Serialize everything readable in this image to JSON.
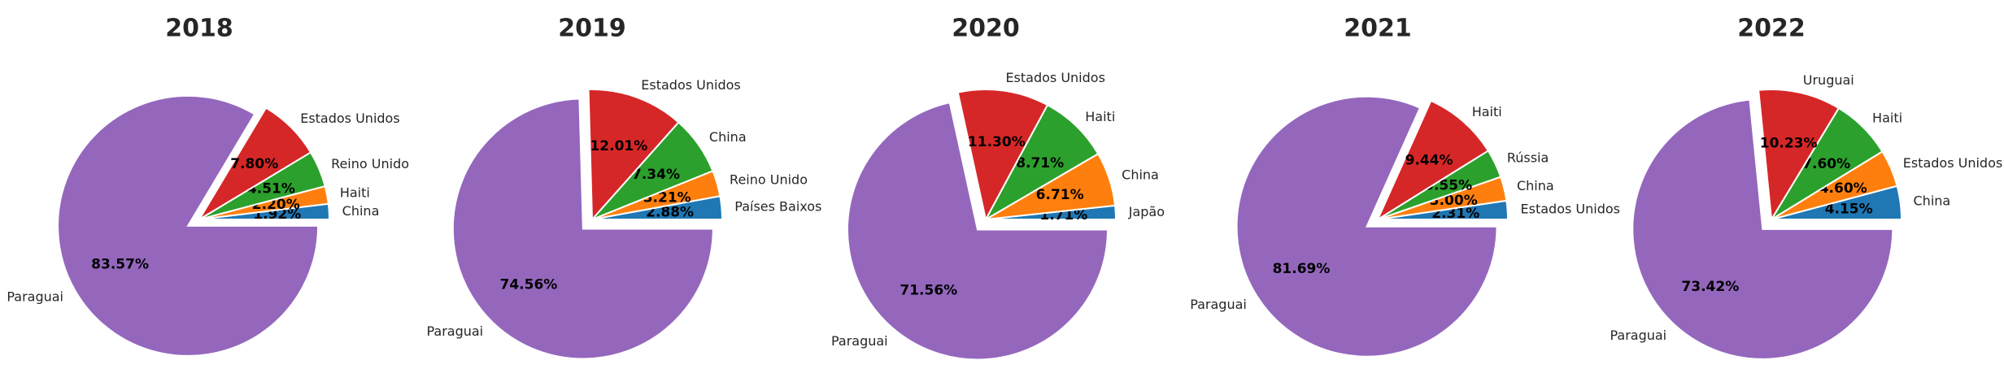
{
  "chart_data": [
    {
      "type": "pie",
      "title": "2018",
      "slices": [
        {
          "label": "China",
          "value": 1.92,
          "pct_label": "1.92%",
          "color": "#1f77b4",
          "explode": false
        },
        {
          "label": "Haiti",
          "value": 2.2,
          "pct_label": "2.20%",
          "color": "#ff7f0e",
          "explode": false
        },
        {
          "label": "Reino Unido",
          "value": 4.51,
          "pct_label": "4.51%",
          "color": "#2ca02c",
          "explode": false
        },
        {
          "label": "Estados Unidos",
          "value": 7.8,
          "pct_label": "7.80%",
          "color": "#d62728",
          "explode": false
        },
        {
          "label": "Paraguai",
          "value": 83.57,
          "pct_label": "83.57%",
          "color": "#9467bd",
          "explode": true
        }
      ]
    },
    {
      "type": "pie",
      "title": "2019",
      "slices": [
        {
          "label": "Países Baixos",
          "value": 2.88,
          "pct_label": "2.88%",
          "color": "#1f77b4",
          "explode": false
        },
        {
          "label": "Reino Unido",
          "value": 3.21,
          "pct_label": "3.21%",
          "color": "#ff7f0e",
          "explode": false
        },
        {
          "label": "China",
          "value": 7.34,
          "pct_label": "7.34%",
          "color": "#2ca02c",
          "explode": false
        },
        {
          "label": "Estados Unidos",
          "value": 12.01,
          "pct_label": "12.01%",
          "color": "#d62728",
          "explode": false
        },
        {
          "label": "Paraguai",
          "value": 74.56,
          "pct_label": "74.56%",
          "color": "#9467bd",
          "explode": true
        }
      ]
    },
    {
      "type": "pie",
      "title": "2020",
      "slices": [
        {
          "label": "Japão",
          "value": 1.71,
          "pct_label": "1.71%",
          "color": "#1f77b4",
          "explode": false
        },
        {
          "label": "China",
          "value": 6.71,
          "pct_label": "6.71%",
          "color": "#ff7f0e",
          "explode": false
        },
        {
          "label": "Haiti",
          "value": 8.71,
          "pct_label": "8.71%",
          "color": "#2ca02c",
          "explode": false
        },
        {
          "label": "Estados Unidos",
          "value": 11.3,
          "pct_label": "11.30%",
          "color": "#d62728",
          "explode": false
        },
        {
          "label": "Paraguai",
          "value": 71.56,
          "pct_label": "71.56%",
          "color": "#9467bd",
          "explode": true
        }
      ]
    },
    {
      "type": "pie",
      "title": "2021",
      "slices": [
        {
          "label": "Estados Unidos",
          "value": 2.31,
          "pct_label": "2.31%",
          "color": "#1f77b4",
          "explode": false
        },
        {
          "label": "China",
          "value": 3.0,
          "pct_label": "3.00%",
          "color": "#ff7f0e",
          "explode": false
        },
        {
          "label": "Rússia",
          "value": 3.55,
          "pct_label": "3.55%",
          "color": "#2ca02c",
          "explode": false
        },
        {
          "label": "Haiti",
          "value": 9.44,
          "pct_label": "9.44%",
          "color": "#d62728",
          "explode": false
        },
        {
          "label": "Paraguai",
          "value": 81.69,
          "pct_label": "81.69%",
          "color": "#9467bd",
          "explode": true
        }
      ]
    },
    {
      "type": "pie",
      "title": "2022",
      "slices": [
        {
          "label": "China",
          "value": 4.15,
          "pct_label": "4.15%",
          "color": "#1f77b4",
          "explode": false
        },
        {
          "label": "Estados Unidos",
          "value": 4.6,
          "pct_label": "4.60%",
          "color": "#ff7f0e",
          "explode": false
        },
        {
          "label": "Haiti",
          "value": 7.6,
          "pct_label": "7.60%",
          "color": "#2ca02c",
          "explode": false
        },
        {
          "label": "Uruguai",
          "value": 10.23,
          "pct_label": "10.23%",
          "color": "#d62728",
          "explode": false
        },
        {
          "label": "Paraguai",
          "value": 73.42,
          "pct_label": "73.42%",
          "color": "#9467bd",
          "explode": true
        }
      ]
    }
  ]
}
